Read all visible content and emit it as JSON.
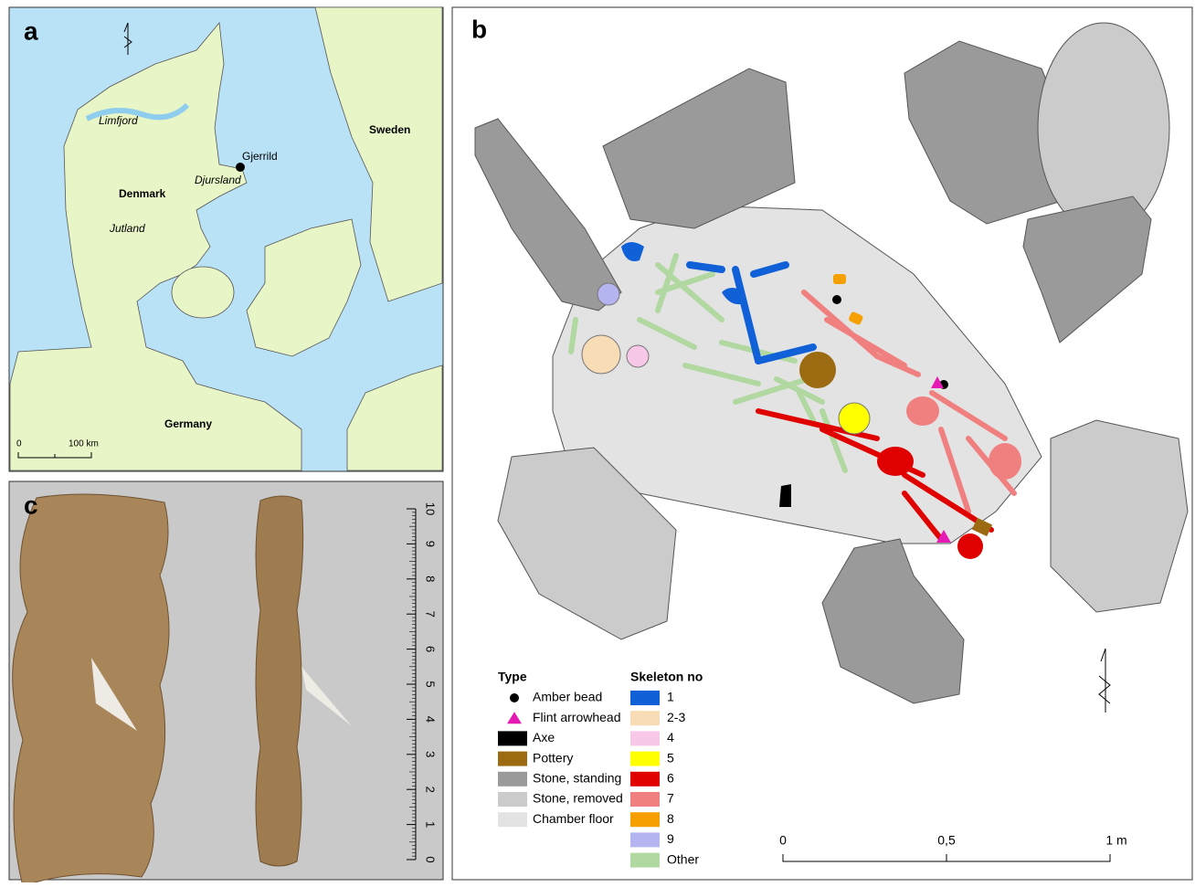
{
  "panel_a": {
    "label": "a",
    "places": [
      "Limfjord",
      "Gjerrild",
      "Djursland",
      "Denmark",
      "Jutland",
      "Sweden",
      "Germany"
    ],
    "scale": [
      "0",
      "100 km"
    ]
  },
  "panel_b": {
    "label": "b",
    "legend_type": {
      "title": "Type",
      "items": [
        {
          "name": "Amber bead",
          "color": "#000000"
        },
        {
          "name": "Flint arrowhead",
          "color": "#e619b5"
        },
        {
          "name": "Axe",
          "color": "#000000"
        },
        {
          "name": "Pottery",
          "color": "#9c6a10"
        },
        {
          "name": "Stone, standing",
          "color": "#9a9a9a"
        },
        {
          "name": "Stone, removed",
          "color": "#cbcbcb"
        },
        {
          "name": "Chamber floor",
          "color": "#e3e3e3"
        }
      ]
    },
    "legend_skeleton": {
      "title": "Skeleton no",
      "items": [
        {
          "name": "1",
          "color": "#1060d8"
        },
        {
          "name": "2-3",
          "color": "#f8dcb6"
        },
        {
          "name": "4",
          "color": "#f8c8e8"
        },
        {
          "name": "5",
          "color": "#ffff00"
        },
        {
          "name": "6",
          "color": "#e00000"
        },
        {
          "name": "7",
          "color": "#f08080"
        },
        {
          "name": "8",
          "color": "#f5a000"
        },
        {
          "name": "9",
          "color": "#b4b4f0"
        },
        {
          "name": "Other",
          "color": "#b0d8a0"
        }
      ]
    },
    "scale": [
      "0",
      "0,5",
      "1 m"
    ]
  },
  "panel_c": {
    "label": "c",
    "ruler": [
      "0",
      "1",
      "2",
      "3",
      "4",
      "5",
      "6",
      "7",
      "8",
      "9",
      "10"
    ]
  }
}
